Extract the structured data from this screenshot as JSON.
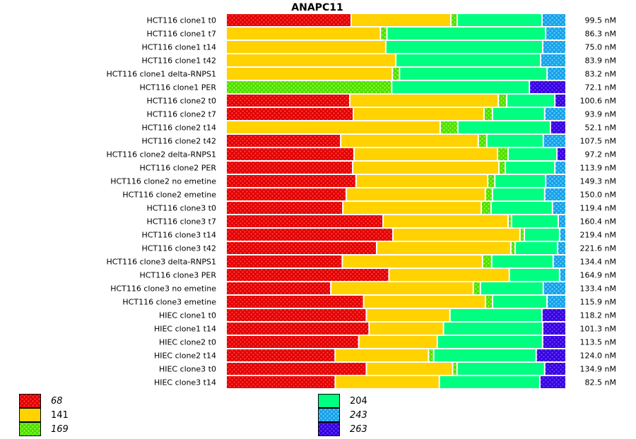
{
  "chart_data": {
    "type": "bar",
    "orientation": "horizontal",
    "stacked": "percent",
    "title": "ANAPC11",
    "legend_placement": "bottom",
    "grid": false,
    "series": [
      {
        "name": "68",
        "color": "#e00000",
        "patterned": true,
        "values": [
          36.9,
          0,
          0,
          0,
          0,
          0,
          36.5,
          37.5,
          0,
          33.8,
          37.7,
          37.3,
          38.3,
          35.4,
          34.4,
          46.3,
          49.2,
          44.4,
          34.2,
          47.9,
          30.8,
          40.4,
          41.3,
          42.1,
          39.0,
          32.1,
          41.3,
          32.1
        ]
      },
      {
        "name": "141",
        "color": "#ffd200",
        "patterned": false,
        "values": [
          29.4,
          45.4,
          47.1,
          50.0,
          49.0,
          0,
          43.8,
          38.5,
          63.1,
          40.6,
          42.3,
          43.1,
          38.8,
          41.0,
          40.8,
          36.9,
          37.5,
          39.6,
          41.3,
          35.4,
          41.9,
          35.8,
          24.6,
          21.9,
          23.1,
          27.5,
          25.4,
          30.6
        ]
      },
      {
        "name": "169",
        "color": "#50dd00",
        "patterned": true,
        "values": [
          1.9,
          1.9,
          0,
          0,
          2.1,
          48.8,
          2.5,
          2.5,
          5.2,
          2.5,
          3.1,
          1.9,
          2.1,
          2.1,
          2.9,
          1.0,
          1.3,
          1.3,
          2.7,
          0,
          2.1,
          2.1,
          0,
          0,
          0,
          1.5,
          1.3,
          0
        ]
      },
      {
        "name": "204",
        "color": "#00ff80",
        "patterned": false,
        "values": [
          25.0,
          46.7,
          46.3,
          42.7,
          43.5,
          40.6,
          14.2,
          15.4,
          27.3,
          16.7,
          14.4,
          14.6,
          15.0,
          15.4,
          18.1,
          13.8,
          10.4,
          12.5,
          18.1,
          14.8,
          18.5,
          16.0,
          27.1,
          29.2,
          31.0,
          30.2,
          25.8,
          29.6
        ]
      },
      {
        "name": "243",
        "color": "#1a9ce8",
        "patterned": true,
        "values": [
          7.1,
          6.0,
          6.9,
          7.5,
          5.6,
          0,
          0,
          6.3,
          0,
          6.7,
          0,
          3.3,
          6.0,
          6.3,
          4.0,
          2.3,
          1.9,
          2.5,
          3.8,
          1.9,
          6.7,
          5.6,
          0,
          0,
          0,
          0,
          0,
          0
        ]
      },
      {
        "name": "263",
        "color": "#3300dd",
        "patterned": true,
        "values": [
          0,
          0,
          0,
          0,
          0,
          10.8,
          3.3,
          0,
          4.6,
          0,
          2.7,
          0,
          0,
          0,
          0,
          0,
          0,
          0,
          0,
          0,
          0,
          0,
          7.1,
          6.9,
          6.9,
          8.8,
          6.3,
          7.7
        ]
      }
    ],
    "categories": [
      "HCT116 clone1 t0",
      "HCT116 clone1 t7",
      "HCT116 clone1 t14",
      "HCT116 clone1 t42",
      "HCT116 clone1 delta-RNPS1",
      "HCT116 clone1 PER",
      "HCT116 clone2 t0",
      "HCT116 clone2 t7",
      "HCT116 clone2 t14",
      "HCT116 clone2 t42",
      "HCT116 clone2 delta-RNPS1",
      "HCT116 clone2 PER",
      "HCT116 clone2 no emetine",
      "HCT116 clone2 emetine",
      "HCT116 clone3 t0",
      "HCT116 clone3 t7",
      "HCT116 clone3 t14",
      "HCT116 clone3 t42",
      "HCT116 clone3 delta-RNPS1",
      "HCT116 clone3 PER",
      "HCT116 clone3 no emetine",
      "HCT116 clone3 emetine",
      "HIEC clone1 t0",
      "HIEC clone1 t14",
      "HIEC clone2 t0",
      "HIEC clone2 t14",
      "HIEC clone3 t0",
      "HIEC clone3 t14"
    ],
    "totals": [
      "99.5 nM",
      "86.3 nM",
      "75.0 nM",
      "83.9 nM",
      "83.2 nM",
      "72.1 nM",
      "100.6 nM",
      "93.9 nM",
      "52.1 nM",
      "107.5 nM",
      "97.2 nM",
      "113.9 nM",
      "149.3 nM",
      "150.0 nM",
      "119.4 nM",
      "160.4 nM",
      "219.4 nM",
      "221.6 nM",
      "134.4 nM",
      "164.9 nM",
      "133.4 nM",
      "115.9 nM",
      "118.2 nM",
      "101.3 nM",
      "113.5 nM",
      "124.0 nM",
      "134.9 nM",
      "82.5 nM"
    ]
  }
}
